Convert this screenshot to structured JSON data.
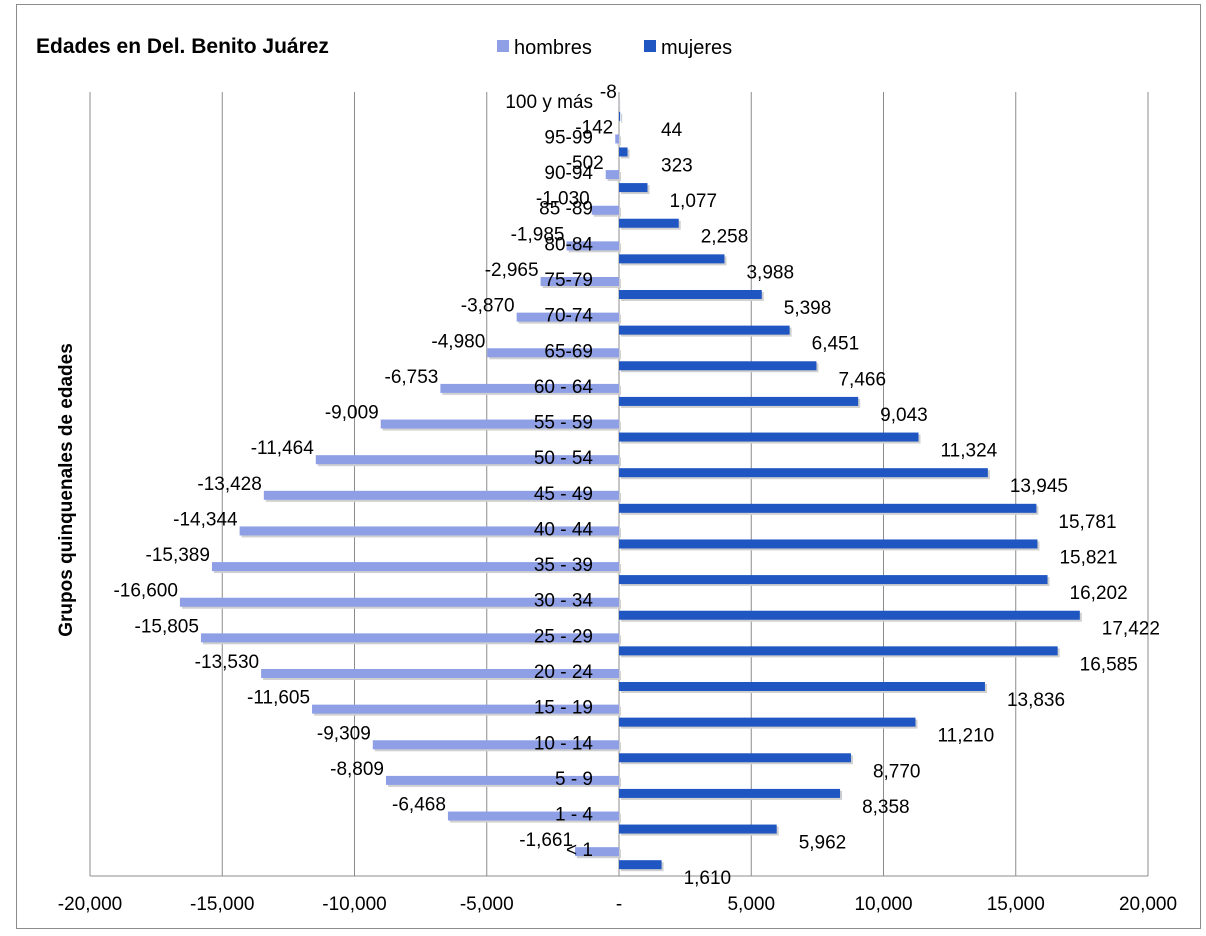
{
  "chart_data": {
    "type": "bar",
    "orientation": "horizontal",
    "title": "Edades en Del. Benito Juárez",
    "ylabel": "Grupos quinquenales de edades",
    "xlabel": "",
    "xlim": [
      -20000,
      20000
    ],
    "xticks": [
      -20000,
      -15000,
      -10000,
      -5000,
      0,
      5000,
      10000,
      15000,
      20000
    ],
    "xtick_labels": [
      "-20,000",
      "-15,000",
      "-10,000",
      "-5,000",
      "-",
      "5,000",
      "10,000",
      "15,000",
      "20,000"
    ],
    "grid": "vertical",
    "legend_position": "top",
    "categories": [
      "< 1",
      "1 - 4",
      "5 - 9",
      "10 - 14",
      "15 - 19",
      "20 - 24",
      "25 - 29",
      "30 - 34",
      "35 - 39",
      "40 - 44",
      "45 - 49",
      "50 - 54",
      "55 - 59",
      "60 - 64",
      "65-69",
      "70-74",
      "75-79",
      "80-84",
      "85 -89",
      "90-94",
      "95-99",
      "100 y más"
    ],
    "series": [
      {
        "name": "hombres",
        "color": "#8e9fe6",
        "values": [
          -1661,
          -6468,
          -8809,
          -9309,
          -11605,
          -13530,
          -15805,
          -16600,
          -15389,
          -14344,
          -13428,
          -11464,
          -9009,
          -6753,
          -4980,
          -3870,
          -2965,
          -1985,
          -1030,
          -502,
          -142,
          -8
        ],
        "labels": [
          "-1,661",
          "-6,468",
          "-8,809",
          "-9,309",
          "-11,605",
          "-13,530",
          "-15,805",
          "-16,600",
          "-15,389",
          "-14,344",
          "-13,428",
          "-11,464",
          "-9,009",
          "-6,753",
          "-4,980",
          "-3,870",
          "-2,965",
          "-1,985",
          "-1,030",
          "-502",
          "-142",
          "-8"
        ]
      },
      {
        "name": "mujeres",
        "color": "#1f56c2",
        "values": [
          1610,
          5962,
          8358,
          8770,
          11210,
          13836,
          16585,
          17422,
          16202,
          15821,
          15781,
          13945,
          11324,
          9043,
          7466,
          6451,
          5398,
          3988,
          2258,
          1077,
          323,
          44
        ],
        "labels": [
          "1,610",
          "5,962",
          "8,358",
          "8,770",
          "11,210",
          "13,836",
          "16,585",
          "17,422",
          "16,202",
          "15,821",
          "15,781",
          "13,945",
          "11,324",
          "9,043",
          "7,466",
          "6,451",
          "5,398",
          "3,988",
          "2,258",
          "1,077",
          "323",
          "44"
        ]
      }
    ]
  }
}
